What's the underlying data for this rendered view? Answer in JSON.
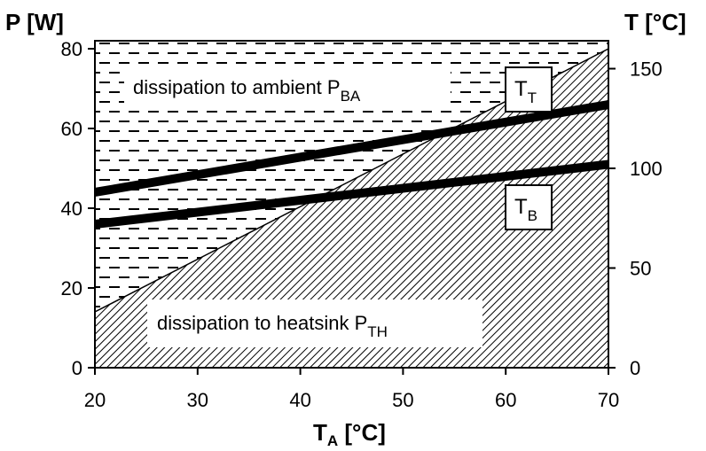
{
  "chart_data": {
    "type": "area",
    "left_axis": {
      "label": "P [W]",
      "range": [
        0,
        82
      ],
      "ticks": [
        0,
        20,
        40,
        60,
        80
      ]
    },
    "right_axis": {
      "label": "T [°C]",
      "range": [
        0,
        164
      ],
      "ticks": [
        0,
        50,
        100,
        150
      ]
    },
    "x_axis": {
      "label_main": "T",
      "label_sub": "A",
      "label_tail": " [°C]",
      "range": [
        20,
        70
      ],
      "ticks": [
        20,
        30,
        40,
        50,
        60,
        70
      ]
    },
    "boundary": {
      "name": "P_TH",
      "x": [
        20,
        70
      ],
      "y": [
        14,
        80
      ]
    },
    "series": [
      {
        "label_main": "T",
        "label_sub": "T",
        "x": [
          20,
          70
        ],
        "y": [
          88,
          132
        ],
        "axis": "right"
      },
      {
        "label_main": "T",
        "label_sub": "B",
        "x": [
          20,
          70
        ],
        "y": [
          72,
          102
        ],
        "axis": "right"
      }
    ],
    "regions": {
      "ambient": {
        "text": "dissipation to ambient P",
        "sub": "BA"
      },
      "heatsink": {
        "text": "dissipation to heatsink P",
        "sub": "TH"
      }
    },
    "grid": false
  }
}
